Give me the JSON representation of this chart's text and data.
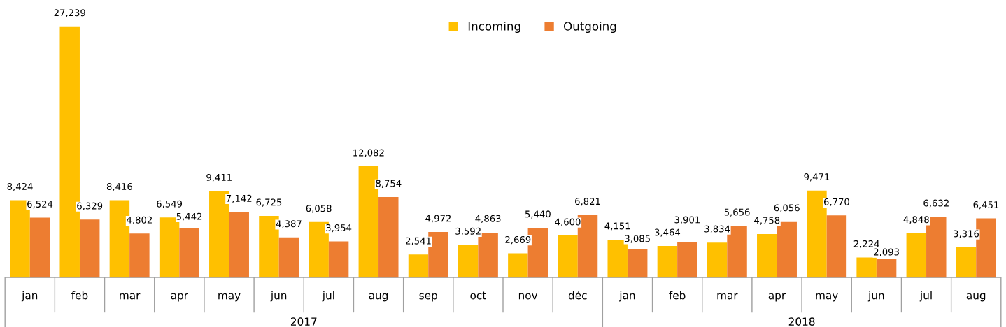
{
  "chart_data": {
    "type": "bar",
    "categories": [
      "jan",
      "feb",
      "mar",
      "apr",
      "may",
      "jun",
      "jul",
      "aug",
      "sep",
      "oct",
      "nov",
      "déc",
      "jan",
      "feb",
      "mar",
      "apr",
      "may",
      "jun",
      "jul",
      "aug"
    ],
    "series": [
      {
        "name": "Incoming",
        "color": "#ffc000",
        "values": [
          8424,
          27239,
          8416,
          6549,
          9411,
          6725,
          6058,
          12082,
          2541,
          3592,
          2669,
          4600,
          4151,
          3464,
          3834,
          4758,
          9471,
          2224,
          4848,
          3316
        ],
        "value_labels": [
          "8,424",
          "27,239",
          "8,416",
          "6,549",
          "9,411",
          "6,725",
          "6,058",
          "12,082",
          "2,541",
          "3,592",
          "2,669",
          "4,600",
          "4,151",
          "3,464",
          "3,834",
          "4,758",
          "9,471",
          "2,224",
          "4,848",
          "3,316"
        ]
      },
      {
        "name": "Outgoing",
        "color": "#ed7d31",
        "values": [
          6524,
          6329,
          4802,
          5442,
          7142,
          4387,
          3954,
          8754,
          4972,
          4863,
          5440,
          6821,
          3085,
          3901,
          5656,
          6056,
          6770,
          2093,
          6632,
          6451
        ],
        "value_labels": [
          "6,524",
          "6,329",
          "4,802",
          "5,442",
          "7,142",
          "4,387",
          "3,954",
          "8,754",
          "4,972",
          "4,863",
          "5,440",
          "6,821",
          "3,085",
          "3,901",
          "5,656",
          "6,056",
          "6,770",
          "2,093",
          "6,632",
          "6,451"
        ]
      }
    ],
    "legend": "top",
    "annotations": [
      "2017",
      "2018"
    ]
  }
}
